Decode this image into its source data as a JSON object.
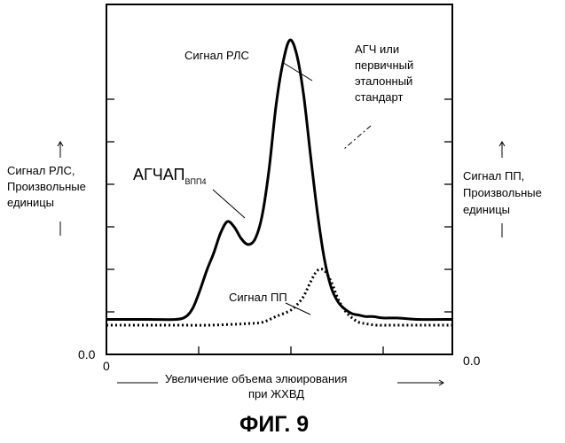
{
  "chart_data": {
    "type": "line",
    "figure_label": "ФИГ. 9",
    "xlabel_line1": "Увеличение объема элюирования",
    "xlabel_line2": "при ЖХВД",
    "ylabel_left": [
      "Сигнал РЛС,",
      "Произвольные",
      "единицы"
    ],
    "ylabel_right": [
      "Сигнал ПП,",
      "Произвольные",
      "единицы"
    ],
    "x_tick_zero": "0",
    "y_left_zero": "0.0",
    "y_right_zero": "0.0",
    "xlim": [
      0,
      100
    ],
    "ylim": [
      0,
      100
    ],
    "grid": false,
    "annotations": {
      "rls_signal": "Сигнал РЛС",
      "agch_line1": "АГЧ или",
      "agch_line2": "первичный",
      "agch_line3": "эталонный",
      "agch_line4": "стандарт",
      "agchap_main": "АГЧАП",
      "agchap_sub": "ВПП4",
      "pp_signal": "Сигнал ПП"
    },
    "series": [
      {
        "style": "solid",
        "x": [
          0,
          12,
          20,
          23,
          25,
          27,
          29,
          31,
          33,
          35,
          37,
          39,
          41,
          43,
          45,
          47,
          49,
          51,
          53,
          55,
          57,
          59,
          61,
          63,
          65,
          67,
          69,
          71,
          73,
          75,
          77,
          80,
          84,
          90,
          100
        ],
        "y": [
          6,
          6,
          6,
          7,
          10,
          16,
          23,
          29,
          36,
          40,
          38,
          34,
          32,
          34,
          42,
          58,
          80,
          95,
          103,
          98,
          84,
          63,
          43,
          27,
          17,
          12,
          9.5,
          8,
          7.5,
          7,
          7,
          6.5,
          6.5,
          6,
          6
        ]
      },
      {
        "style": "dotted",
        "x": [
          0,
          20,
          30,
          40,
          45,
          49,
          53,
          55,
          57,
          59,
          61,
          63,
          65,
          67,
          69,
          71,
          73,
          75,
          78,
          82,
          88,
          100
        ],
        "y": [
          4,
          4,
          4,
          4.5,
          5,
          7,
          9,
          11,
          14,
          19,
          23,
          23,
          19,
          13,
          9,
          6.5,
          5,
          4.5,
          4,
          4,
          4,
          4
        ]
      }
    ]
  }
}
